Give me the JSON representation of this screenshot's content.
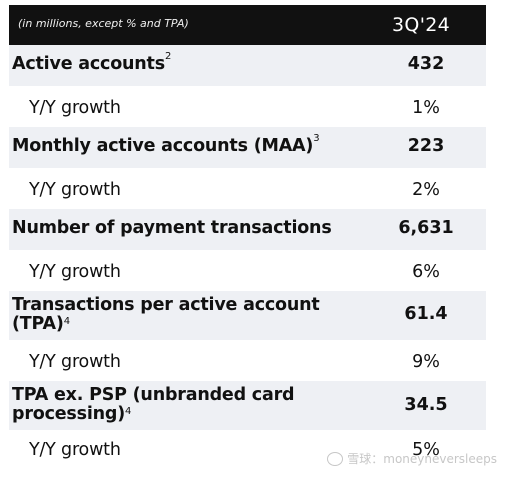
{
  "header": {
    "caption": "(in millions, except % and TPA)",
    "period": "3Q'24"
  },
  "rows": [
    {
      "label": "Active accounts",
      "sup": "2",
      "value": "432"
    },
    {
      "label": "Y/Y growth",
      "value": "1%"
    },
    {
      "label": "Monthly active accounts (MAA)",
      "sup": "3",
      "value": "223"
    },
    {
      "label": "Y/Y growth",
      "value": "2%"
    },
    {
      "label": "Number of payment transactions",
      "value": "6,631"
    },
    {
      "label": "Y/Y growth",
      "value": "6%"
    },
    {
      "label_line1": "Transactions per active account",
      "label_line2": "(TPA)",
      "sup": "4",
      "value": "61.4"
    },
    {
      "label": "Y/Y growth",
      "value": "9%"
    },
    {
      "label_line1": "TPA ex. PSP (unbranded card",
      "label_line2": "processing)",
      "sup": "4",
      "value": "34.5"
    },
    {
      "label": "Y/Y growth",
      "value": "5%"
    }
  ],
  "watermark": {
    "text": "雪球：moneyneversleeps",
    "icon": "snowball-logo-icon"
  }
}
